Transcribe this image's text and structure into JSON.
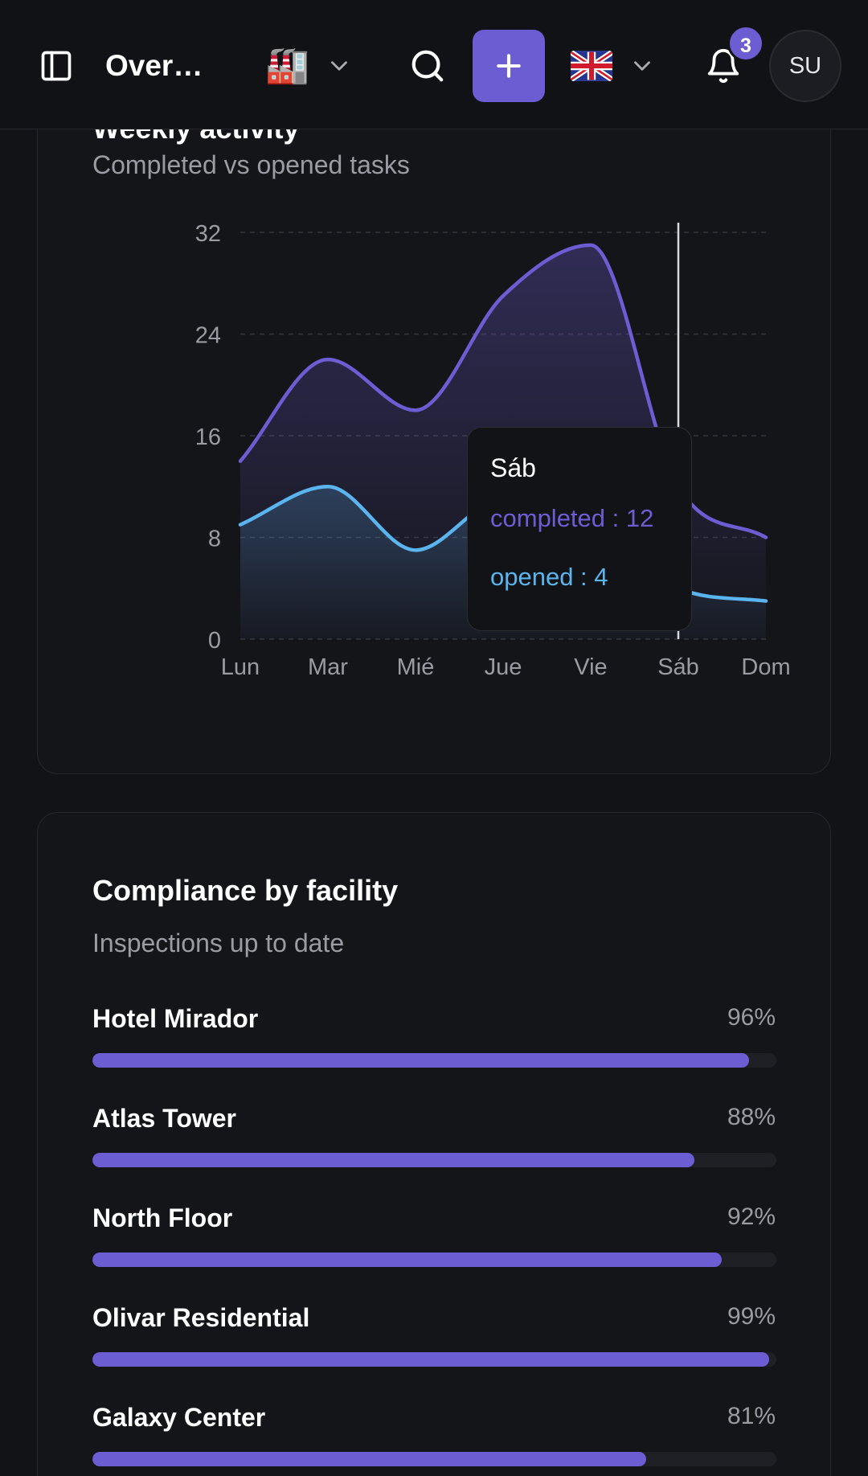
{
  "header": {
    "title": "Overview",
    "facility_emoji": "🏭",
    "language_flag": "flag-uk",
    "notification_count": "3",
    "avatar_initials": "SU"
  },
  "activity_card": {
    "title": "Weekly activity",
    "subtitle": "Completed vs opened tasks",
    "tooltip": {
      "day": "Sáb",
      "completed_text": "completed : 12",
      "opened_text": "opened : 4"
    }
  },
  "chart_data": {
    "type": "area",
    "categories": [
      "Lun",
      "Mar",
      "Mié",
      "Jue",
      "Vie",
      "Sáb",
      "Dom"
    ],
    "series": [
      {
        "name": "completed",
        "values": [
          14,
          22,
          18,
          27,
          31,
          12,
          8
        ],
        "color": "#6c5dd3"
      },
      {
        "name": "opened",
        "values": [
          9,
          12,
          7,
          11,
          10,
          4,
          3
        ],
        "color": "#5ab4ee"
      }
    ],
    "yticks": [
      0,
      8,
      16,
      24,
      32
    ],
    "ylim": [
      0,
      32
    ],
    "grid": true,
    "active_category": "Sáb"
  },
  "compliance_card": {
    "title": "Compliance by facility",
    "subtitle": "Inspections up to date",
    "rows": [
      {
        "name": "Hotel Mirador",
        "value_label": "96%",
        "value": 96
      },
      {
        "name": "Atlas Tower",
        "value_label": "88%",
        "value": 88
      },
      {
        "name": "North Floor",
        "value_label": "92%",
        "value": 92
      },
      {
        "name": "Olivar Residential",
        "value_label": "99%",
        "value": 99
      },
      {
        "name": "Galaxy Center",
        "value_label": "81%",
        "value": 81
      }
    ]
  },
  "colors": {
    "accent": "#6c5dd3",
    "secondary": "#5ab4ee",
    "background": "#121317"
  }
}
